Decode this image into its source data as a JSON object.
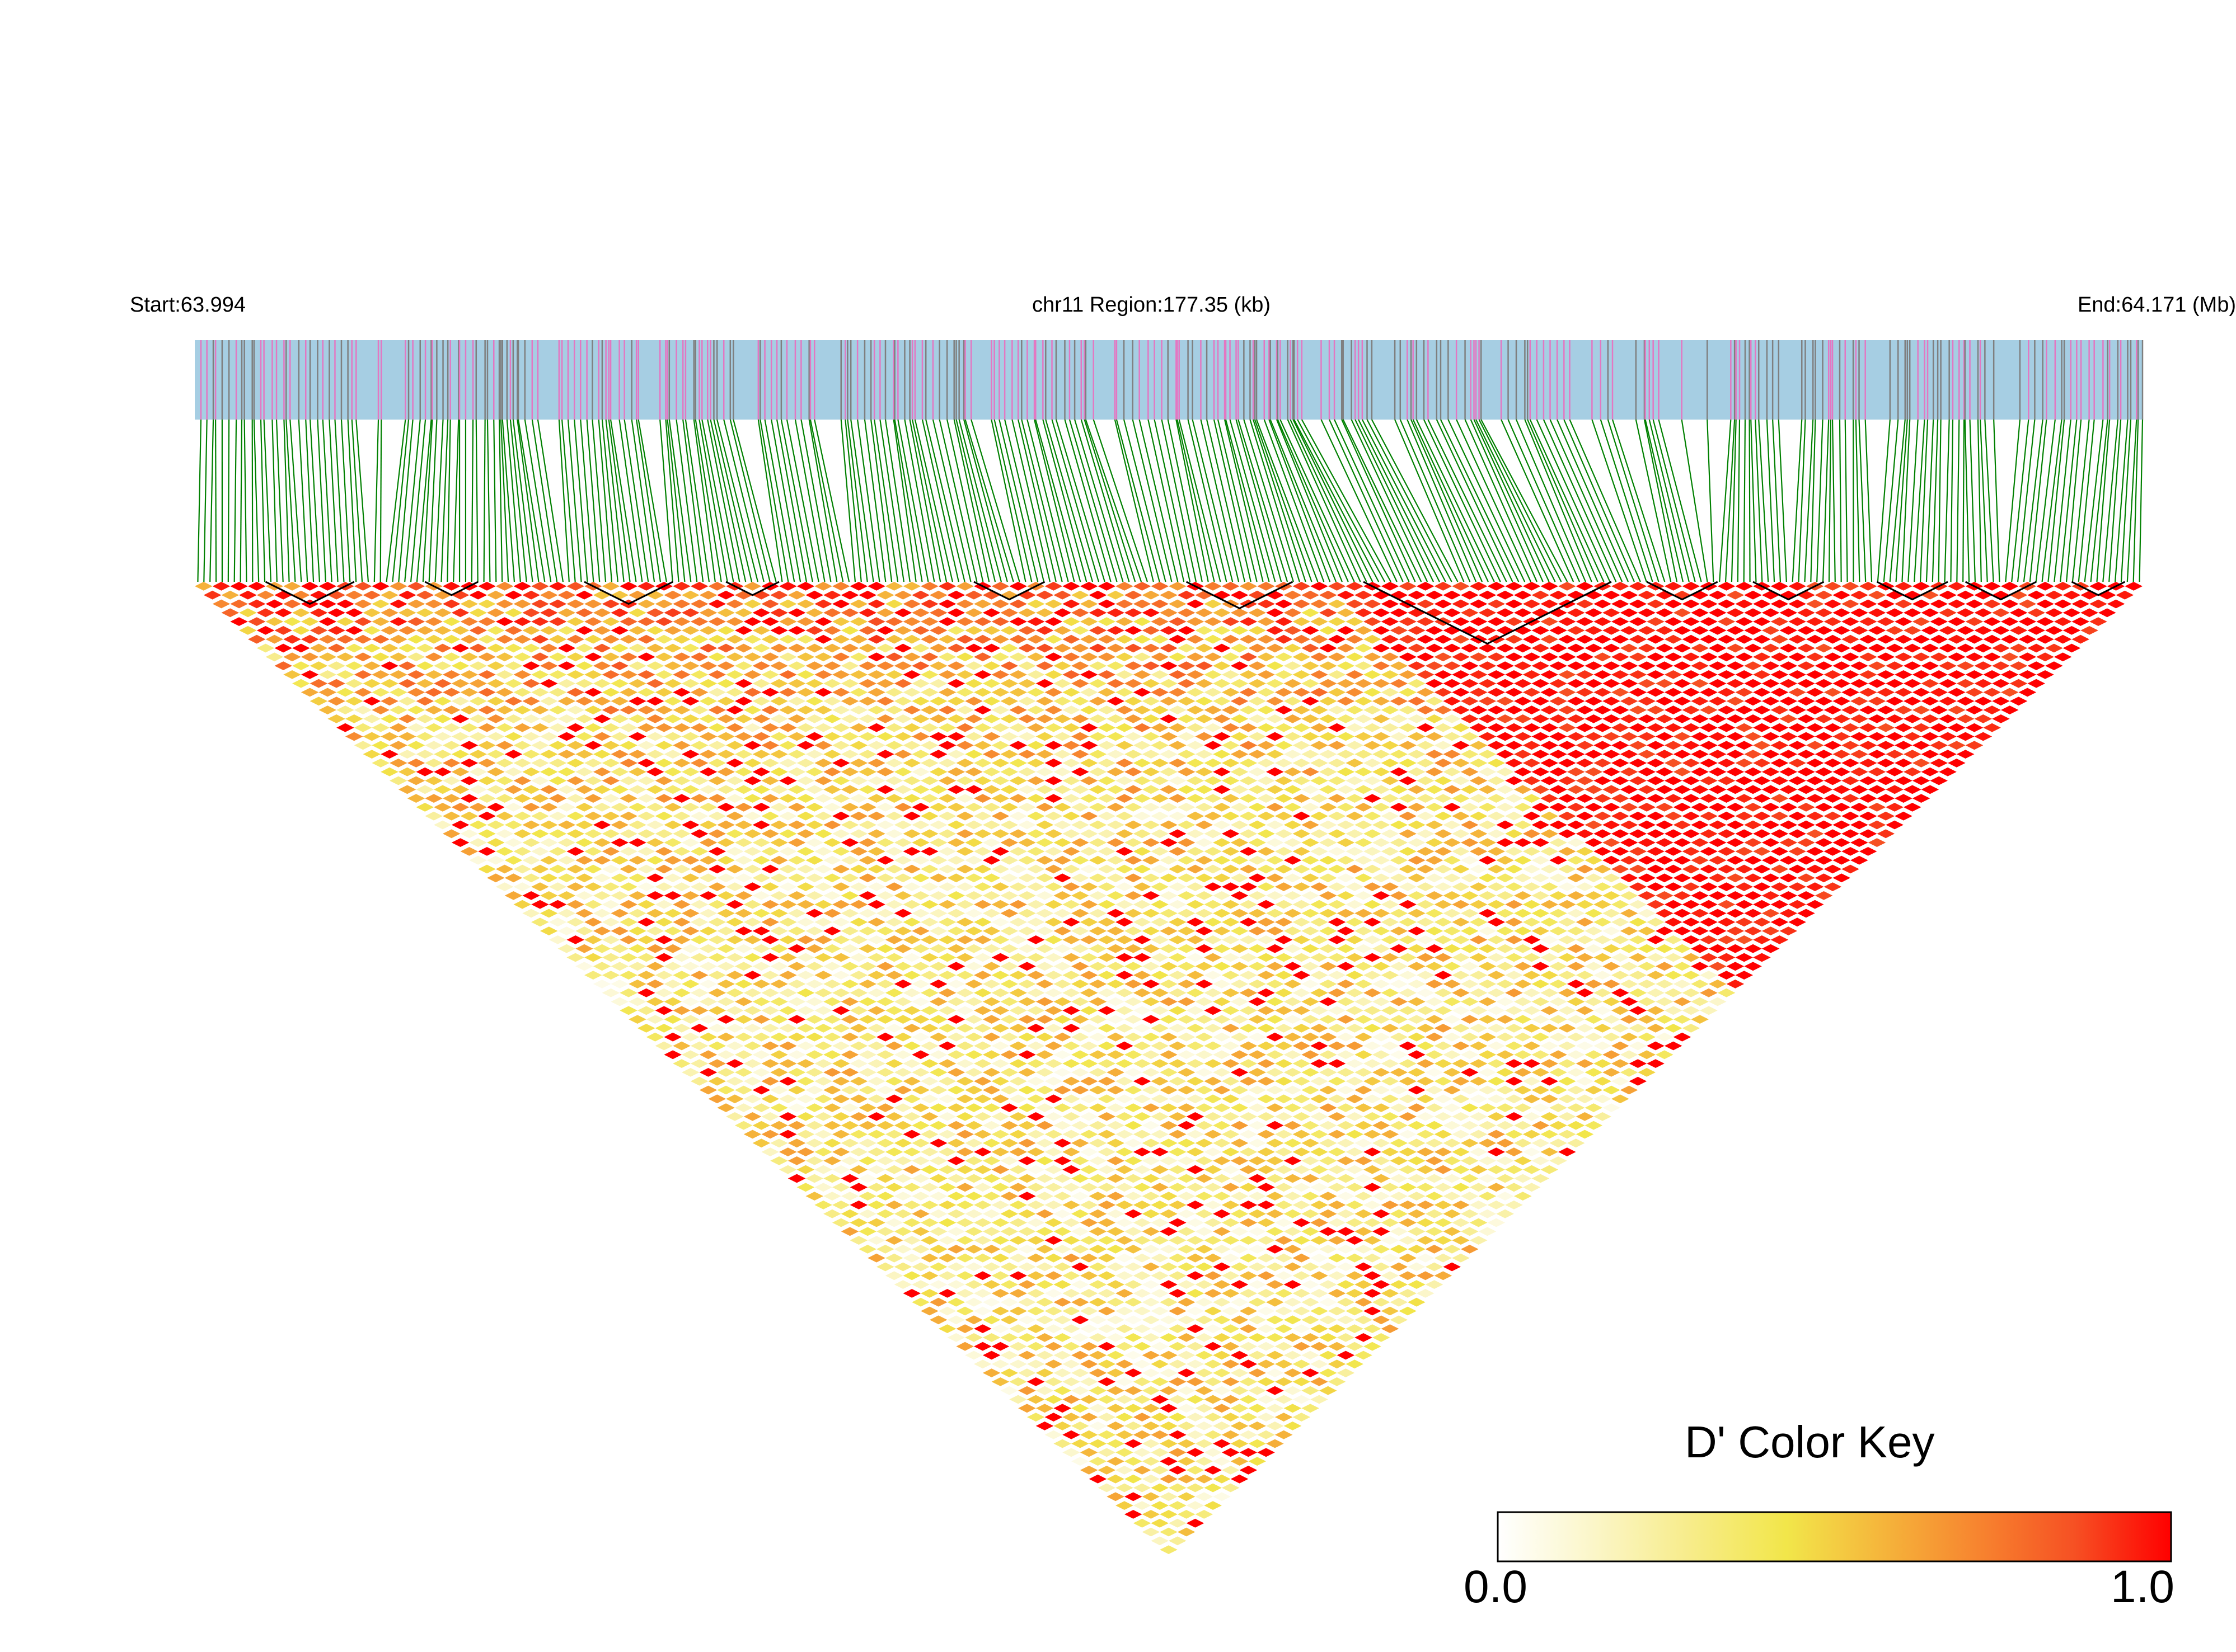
{
  "header": {
    "start_label": "Start:63.994",
    "region_label": "chr11 Region:177.35 (kb)",
    "end_label": "End:64.171 (Mb)"
  },
  "colors": {
    "snp_band": "#a6cee3",
    "snp_tick_a": "#e377c2",
    "snp_tick_b": "#7f7f7f",
    "connector_line": "#008000",
    "ld_high": "#ff0000",
    "ld_mid": "#f5e642",
    "ld_low": "#ffffff",
    "block_outline": "#000000"
  },
  "color_key": {
    "title": "D' Color Key",
    "min_label": "0.0",
    "max_label": "1.0",
    "gradient": [
      "#ffffff",
      "#fbf6c8",
      "#f7ec8a",
      "#f2e64a",
      "#f5b53b",
      "#f7842f",
      "#f65023",
      "#ff0000"
    ]
  }
}
